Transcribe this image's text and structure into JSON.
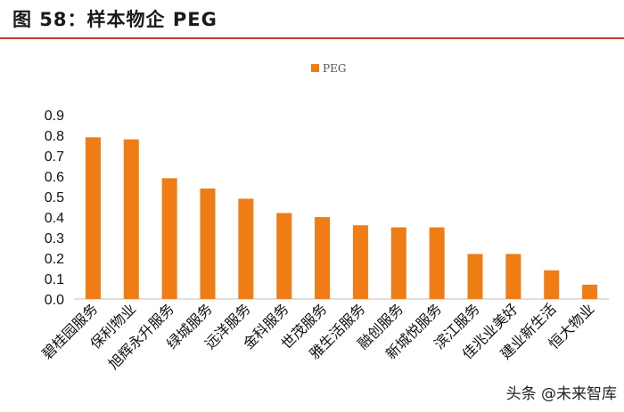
{
  "figure": {
    "title": "图 58：样本物企 PEG"
  },
  "watermark": "头条 @未来智库",
  "chart_data": {
    "type": "bar",
    "categories": [
      "碧桂园服务",
      "保利物业",
      "旭辉永升服务",
      "绿城服务",
      "远洋服务",
      "金科服务",
      "世茂服务",
      "雅生活服务",
      "融创服务",
      "新城悦服务",
      "滨江服务",
      "佳兆业美好",
      "建业新生活",
      "恒大物业"
    ],
    "series": [
      {
        "name": "PEG",
        "values": [
          0.79,
          0.78,
          0.59,
          0.54,
          0.49,
          0.42,
          0.4,
          0.36,
          0.35,
          0.35,
          0.22,
          0.22,
          0.14,
          0.07
        ]
      }
    ],
    "ylim": [
      0,
      0.9
    ],
    "yticks": [
      "0.0",
      "0.1",
      "0.2",
      "0.3",
      "0.4",
      "0.5",
      "0.6",
      "0.7",
      "0.8",
      "0.9"
    ],
    "legend_position": "top-center",
    "grid": false,
    "bar_color": "#F07C15"
  }
}
